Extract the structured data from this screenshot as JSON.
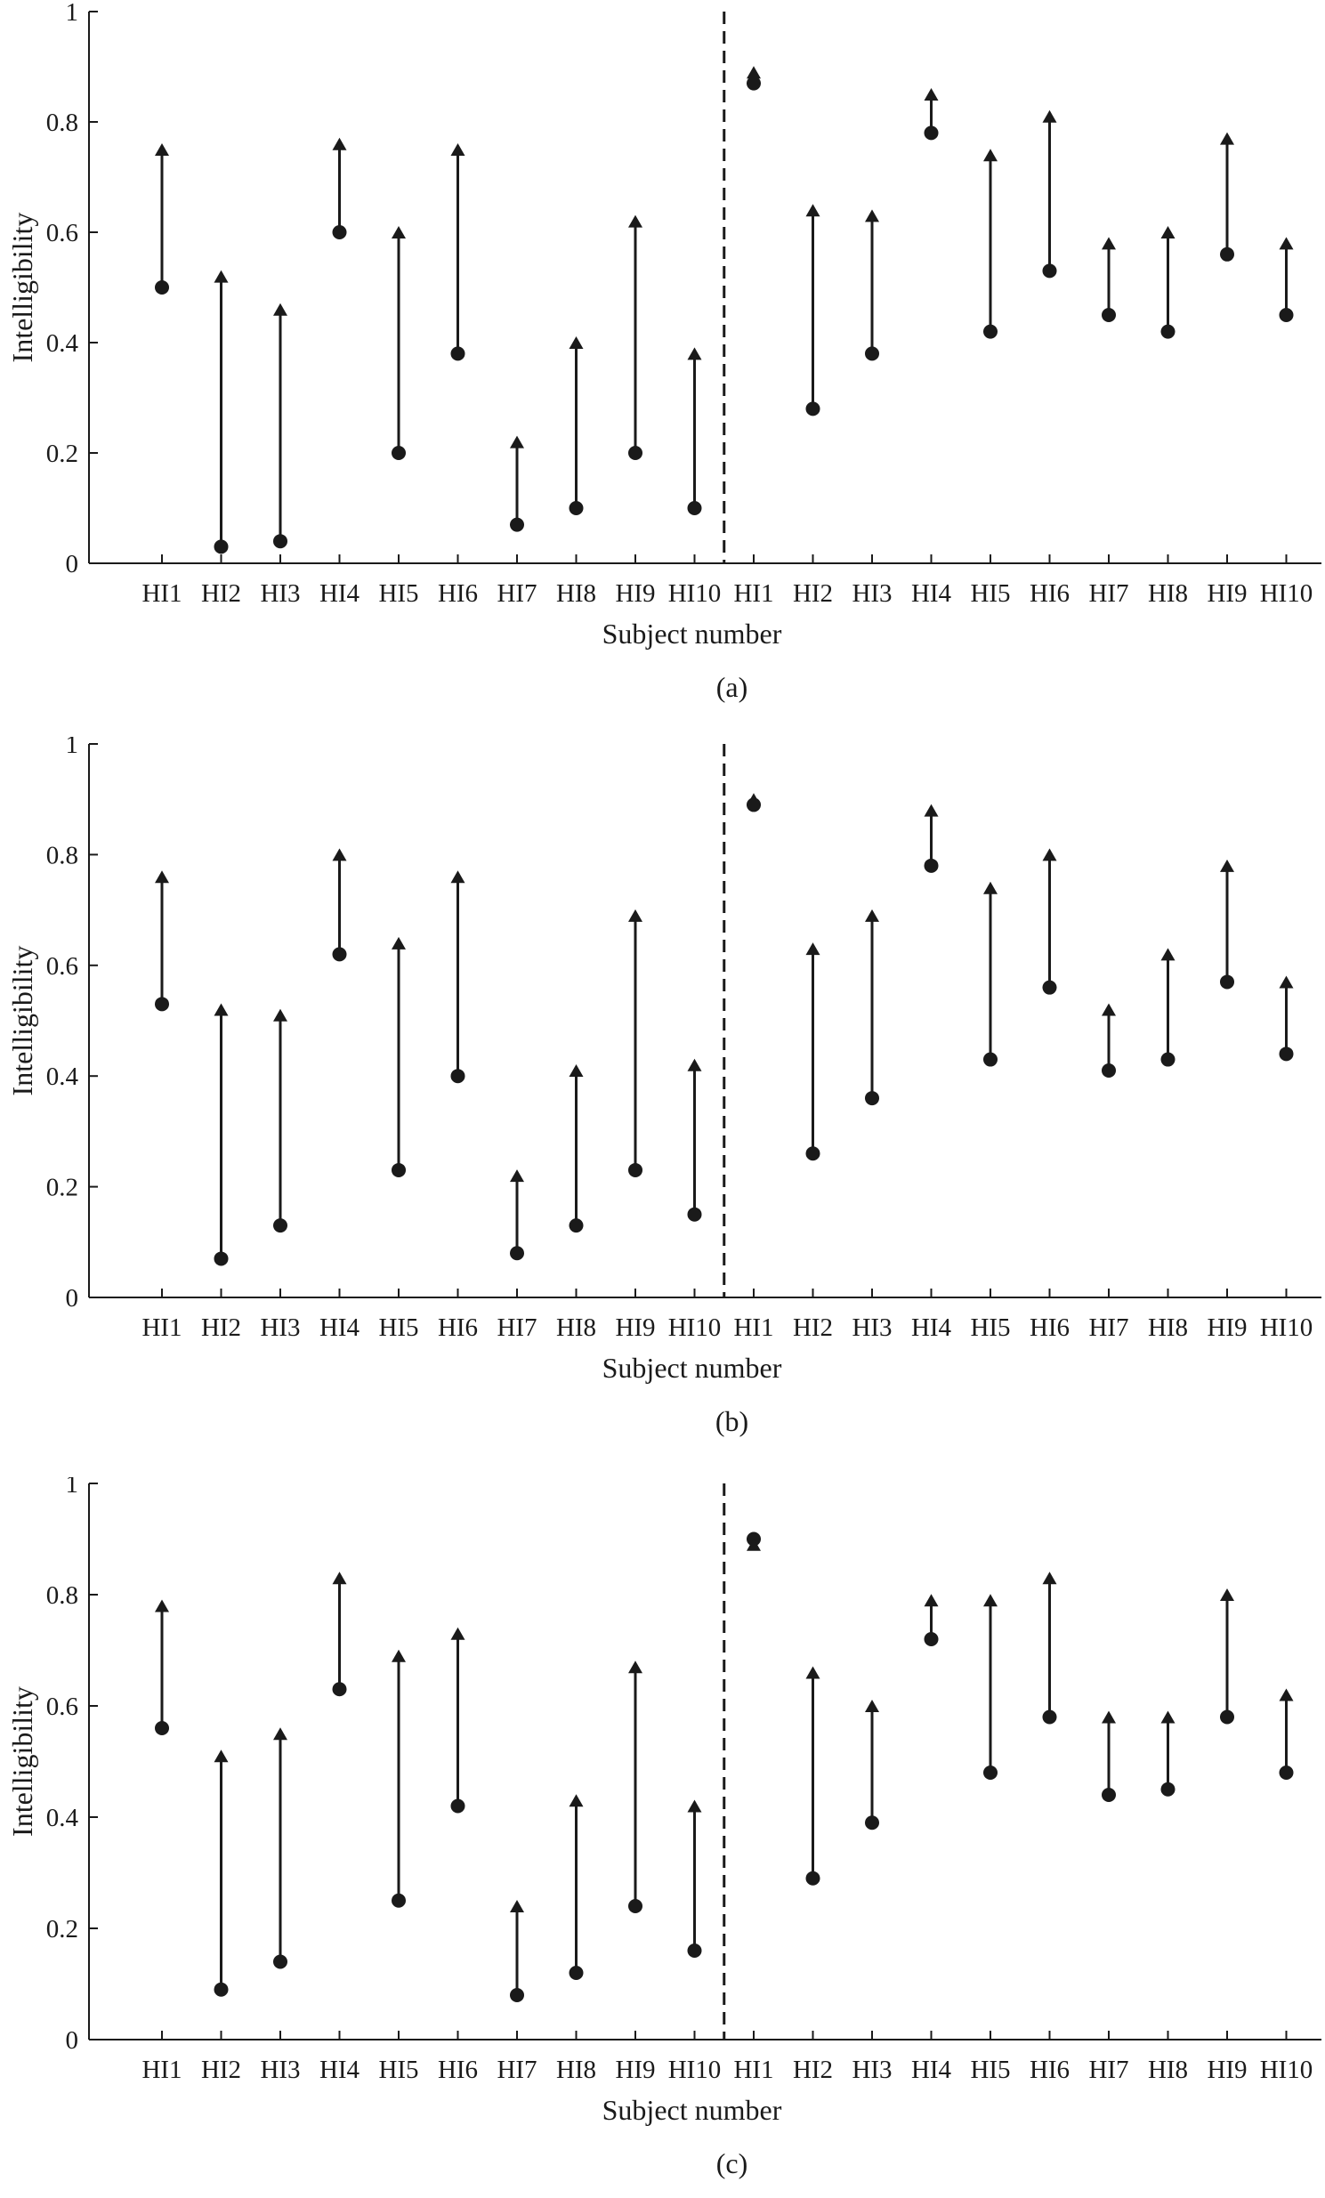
{
  "figure": {
    "panels": [
      {
        "label": "(a)"
      },
      {
        "label": "(b)"
      },
      {
        "label": "(c)"
      }
    ]
  },
  "chart_data": [
    {
      "type": "scatter",
      "panel_label": "(a)",
      "xlabel": "Subject number",
      "ylabel": "Intelligibility",
      "ylim": [
        0,
        1
      ],
      "yticks": [
        "0",
        "0.2",
        "0.4",
        "0.6",
        "0.8",
        "1"
      ],
      "categories": [
        "HI1",
        "HI2",
        "HI3",
        "HI4",
        "HI5",
        "HI6",
        "HI7",
        "HI8",
        "HI9",
        "HI10",
        "HI1",
        "HI2",
        "HI3",
        "HI4",
        "HI5",
        "HI6",
        "HI7",
        "HI8",
        "HI9",
        "HI10"
      ],
      "series": [
        {
          "values": [
            0.5,
            0.03,
            0.04,
            0.6,
            0.2,
            0.38,
            0.07,
            0.1,
            0.2,
            0.1,
            0.87,
            0.28,
            0.38,
            0.78,
            0.42,
            0.53,
            0.45,
            0.42,
            0.56,
            0.45
          ]
        },
        {
          "values": [
            0.75,
            0.52,
            0.46,
            0.76,
            0.6,
            0.75,
            0.22,
            0.4,
            0.62,
            0.38,
            0.89,
            0.64,
            0.63,
            0.85,
            0.74,
            0.81,
            0.58,
            0.6,
            0.77,
            0.58
          ]
        }
      ],
      "divider_after_index": 9,
      "grid": false
    },
    {
      "type": "scatter",
      "panel_label": "(b)",
      "xlabel": "Subject number",
      "ylabel": "Intelligibility",
      "ylim": [
        0,
        1
      ],
      "yticks": [
        "0",
        "0.2",
        "0.4",
        "0.6",
        "0.8",
        "1"
      ],
      "categories": [
        "HI1",
        "HI2",
        "HI3",
        "HI4",
        "HI5",
        "HI6",
        "HI7",
        "HI8",
        "HI9",
        "HI10",
        "HI1",
        "HI2",
        "HI3",
        "HI4",
        "HI5",
        "HI6",
        "HI7",
        "HI8",
        "HI9",
        "HI10"
      ],
      "series": [
        {
          "values": [
            0.53,
            0.07,
            0.13,
            0.62,
            0.23,
            0.4,
            0.08,
            0.13,
            0.23,
            0.15,
            0.89,
            0.26,
            0.36,
            0.78,
            0.43,
            0.56,
            0.41,
            0.43,
            0.57,
            0.44
          ]
        },
        {
          "values": [
            0.76,
            0.52,
            0.51,
            0.8,
            0.64,
            0.76,
            0.22,
            0.41,
            0.69,
            0.42,
            0.9,
            0.63,
            0.69,
            0.88,
            0.74,
            0.8,
            0.52,
            0.62,
            0.78,
            0.57
          ]
        }
      ],
      "divider_after_index": 9,
      "grid": false
    },
    {
      "type": "scatter",
      "panel_label": "(c)",
      "xlabel": "Subject number",
      "ylabel": "Intelligibility",
      "ylim": [
        0,
        1
      ],
      "yticks": [
        "0",
        "0.2",
        "0.4",
        "0.6",
        "0.8",
        "1"
      ],
      "categories": [
        "HI1",
        "HI2",
        "HI3",
        "HI4",
        "HI5",
        "HI6",
        "HI7",
        "HI8",
        "HI9",
        "HI10",
        "HI1",
        "HI2",
        "HI3",
        "HI4",
        "HI5",
        "HI6",
        "HI7",
        "HI8",
        "HI9",
        "HI10"
      ],
      "series": [
        {
          "values": [
            0.56,
            0.09,
            0.14,
            0.63,
            0.25,
            0.42,
            0.08,
            0.12,
            0.24,
            0.16,
            0.9,
            0.29,
            0.39,
            0.72,
            0.48,
            0.58,
            0.44,
            0.45,
            0.58,
            0.48
          ]
        },
        {
          "values": [
            0.78,
            0.51,
            0.55,
            0.83,
            0.69,
            0.73,
            0.24,
            0.43,
            0.67,
            0.42,
            0.89,
            0.66,
            0.6,
            0.79,
            0.79,
            0.83,
            0.58,
            0.58,
            0.8,
            0.62
          ]
        }
      ],
      "divider_after_index": 9,
      "grid": false
    }
  ]
}
